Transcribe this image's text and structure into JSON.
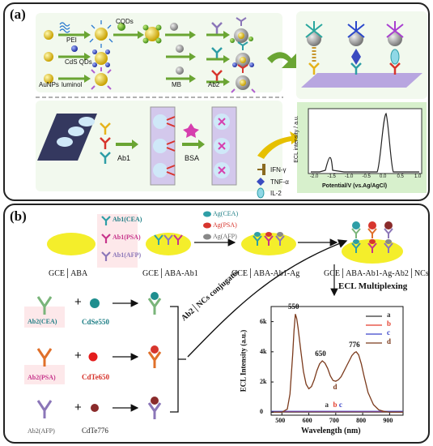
{
  "panel_a": {
    "label": "(a)",
    "reagents": [
      "PEI",
      "CdS QDs",
      "luminol",
      "AuNPs",
      "CQDs",
      "MB",
      "Ab2"
    ],
    "steps": [
      "Ab1",
      "BSA"
    ],
    "legend": [
      "IFN-γ",
      "TNF-α",
      "IL-2"
    ],
    "plot": {
      "ylabel": "ECL intensity / a.u.",
      "xlabel": "Potential/V (vs.Ag/AgCl)",
      "ticks": [
        "-2.0",
        "-1.5",
        "-1.0",
        "-0.5",
        "0.0",
        "0.5",
        "1.0"
      ]
    }
  },
  "panel_b": {
    "label": "(b)",
    "ab1": [
      "Ab1(CEA)",
      "Ab1(PSA)",
      "Ab1(AFP)"
    ],
    "ag": [
      "Ag(CEA)",
      "Ag(PSA)",
      "Ag(AFP)"
    ],
    "electrodes": [
      "GCE│ABA",
      "GCE│ABA-Ab1",
      "GCE│ABA-Ab1-Ag",
      "GCE│ABA-Ab1-Ag-Ab2│NCs"
    ],
    "conjugates_label": "Ab2│NCs conjugates",
    "multiplex_label": "ECL Multiplexing",
    "ab2": [
      "Ab2(CEA)",
      "Ab2(PSA)",
      "Ab2(AFP)"
    ],
    "ncs": [
      "CdSe550",
      "CdTe650",
      "CdTe776"
    ],
    "chart": {
      "xlabel": "Wavelength (nm)",
      "ylabel": "ECL Intensity (a.u.)",
      "xticks": [
        "500",
        "600",
        "700",
        "800",
        "900"
      ],
      "yticks": [
        "0",
        "2k",
        "4k",
        "6k"
      ],
      "peak_labels": [
        "550",
        "650",
        "776"
      ],
      "legend": [
        "a",
        "b",
        "c",
        "d"
      ],
      "curve_labels": [
        "a",
        "b",
        "c",
        "d"
      ]
    }
  },
  "chart_data": {
    "type": "line",
    "title": "",
    "xlabel": "Wavelength (nm)",
    "ylabel": "ECL Intensity (a.u.)",
    "xlim": [
      460,
      950
    ],
    "ylim": [
      -200,
      7000
    ],
    "series": [
      {
        "name": "a",
        "color": "#333333",
        "x": [
          460,
          950
        ],
        "y": [
          0,
          0
        ]
      },
      {
        "name": "b",
        "color": "#e33b2a",
        "x": [
          460,
          950
        ],
        "y": [
          0,
          0
        ]
      },
      {
        "name": "c",
        "color": "#3a45c9",
        "x": [
          460,
          950
        ],
        "y": [
          0,
          0
        ]
      },
      {
        "name": "d",
        "color": "#7b3a1c",
        "x": [
          460,
          500,
          520,
          530,
          540,
          545,
          550,
          555,
          560,
          570,
          580,
          590,
          600,
          610,
          620,
          630,
          640,
          650,
          660,
          670,
          680,
          690,
          700,
          710,
          720,
          730,
          740,
          750,
          760,
          770,
          776,
          785,
          795,
          805,
          820,
          840,
          860,
          880,
          900,
          950
        ],
        "y": [
          0,
          0,
          200,
          1200,
          3800,
          5400,
          6500,
          6200,
          5600,
          4100,
          2700,
          1850,
          1550,
          1700,
          2150,
          2750,
          3200,
          3400,
          3250,
          2900,
          2400,
          2100,
          2050,
          2150,
          2350,
          2700,
          3050,
          3400,
          3750,
          3950,
          4000,
          3800,
          3200,
          2400,
          1300,
          500,
          150,
          50,
          0,
          0
        ]
      }
    ]
  },
  "colors": {
    "green_arrow": "#6aa533",
    "yellow_disk": "#f4ee2b",
    "cea": "#2e9ea6",
    "psa": "#d7352d",
    "afp": "#8b76b8"
  }
}
